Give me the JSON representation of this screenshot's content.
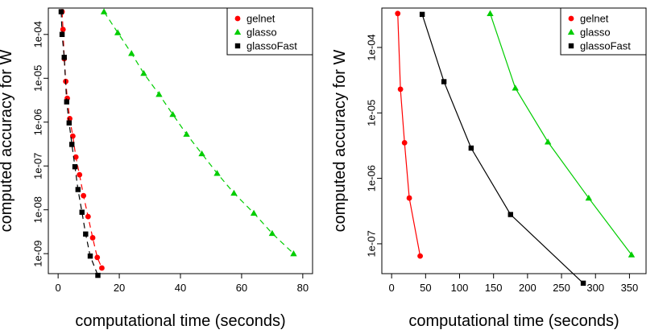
{
  "chart_data": [
    {
      "type": "line",
      "xlabel": "computational time (seconds)",
      "ylabel": "computed accuracy for W",
      "xlim": [
        0,
        80
      ],
      "ylim": [
        3.5e-10,
        0.0004
      ],
      "y_scale": "log",
      "x_ticks": [
        0,
        20,
        40,
        60,
        80
      ],
      "y_ticks": [
        1e-09,
        1e-08,
        1e-07,
        1e-06,
        1e-05,
        0.0001
      ],
      "y_tick_labels": [
        "1e-09",
        "1e-08",
        "1e-07",
        "1e-06",
        "1e-05",
        "1e-04"
      ],
      "legend_position": "top-right",
      "series": [
        {
          "name": "gelnet",
          "color": "#ff0000",
          "marker": "circle",
          "line": "dashed",
          "x": [
            1.3,
            1.6,
            2.0,
            2.5,
            3.0,
            3.8,
            4.8,
            5.8,
            7.0,
            8.3,
            9.8,
            11.3,
            12.8,
            14.3
          ],
          "y": [
            0.00033,
            0.00013,
            2.8e-05,
            8.5e-06,
            3.5e-06,
            1.2e-06,
            4.8e-07,
            1.6e-07,
            6.3e-08,
            2.1e-08,
            7e-09,
            2.3e-09,
            8.2e-10,
            4.7e-10
          ]
        },
        {
          "name": "glasso",
          "color": "#00cd00",
          "marker": "triangle",
          "line": "dashed",
          "x": [
            15.0,
            19.5,
            24.0,
            28.0,
            33.0,
            37.5,
            42.0,
            47.0,
            52.0,
            57.5,
            64.0,
            70.0,
            77.0
          ],
          "y": [
            0.00033,
            0.00011,
            3.7e-05,
            1.3e-05,
            4.3e-06,
            1.5e-06,
            5.3e-07,
            1.9e-07,
            6.8e-08,
            2.4e-08,
            8.4e-09,
            2.9e-09,
            1e-09
          ]
        },
        {
          "name": "glassoFast",
          "color": "#000000",
          "marker": "square",
          "line": "dashed",
          "x": [
            1.0,
            1.3,
            2.0,
            2.8,
            3.6,
            4.5,
            5.5,
            6.5,
            7.8,
            9.0,
            10.5,
            13.0
          ],
          "y": [
            0.00033,
            0.0001,
            3e-05,
            2.9e-06,
            9.6e-07,
            3.1e-07,
            9.6e-08,
            2.9e-08,
            8.8e-09,
            2.8e-09,
            8.8e-10,
            3.2e-10
          ]
        }
      ]
    },
    {
      "type": "line",
      "xlabel": "computational time (seconds)",
      "ylabel": "computed accuracy for W",
      "xlim": [
        0,
        360
      ],
      "ylim": [
        3.5e-08,
        0.0004
      ],
      "y_scale": "log",
      "x_ticks": [
        0,
        50,
        100,
        150,
        200,
        250,
        300,
        350
      ],
      "y_ticks": [
        1e-07,
        1e-06,
        1e-05,
        0.0001
      ],
      "y_tick_labels": [
        "1e-07",
        "1e-06",
        "1e-05",
        "1e-04"
      ],
      "legend_position": "top-right",
      "series": [
        {
          "name": "gelnet",
          "color": "#ff0000",
          "marker": "circle",
          "line": "solid",
          "x": [
            9,
            13,
            19,
            26,
            42
          ],
          "y": [
            0.00033,
            2.3e-05,
            3.5e-06,
            5e-07,
            6.5e-08
          ]
        },
        {
          "name": "glasso",
          "color": "#00cd00",
          "marker": "triangle",
          "line": "solid",
          "x": [
            145,
            182,
            230,
            290,
            353
          ],
          "y": [
            0.00033,
            2.4e-05,
            3.6e-06,
            5e-07,
            6.8e-08
          ]
        },
        {
          "name": "glassoFast",
          "color": "#000000",
          "marker": "square",
          "line": "solid",
          "x": [
            45,
            77,
            117,
            175,
            282
          ],
          "y": [
            0.00032,
            3e-05,
            2.9e-06,
            2.8e-07,
            2.5e-08
          ]
        }
      ]
    }
  ]
}
